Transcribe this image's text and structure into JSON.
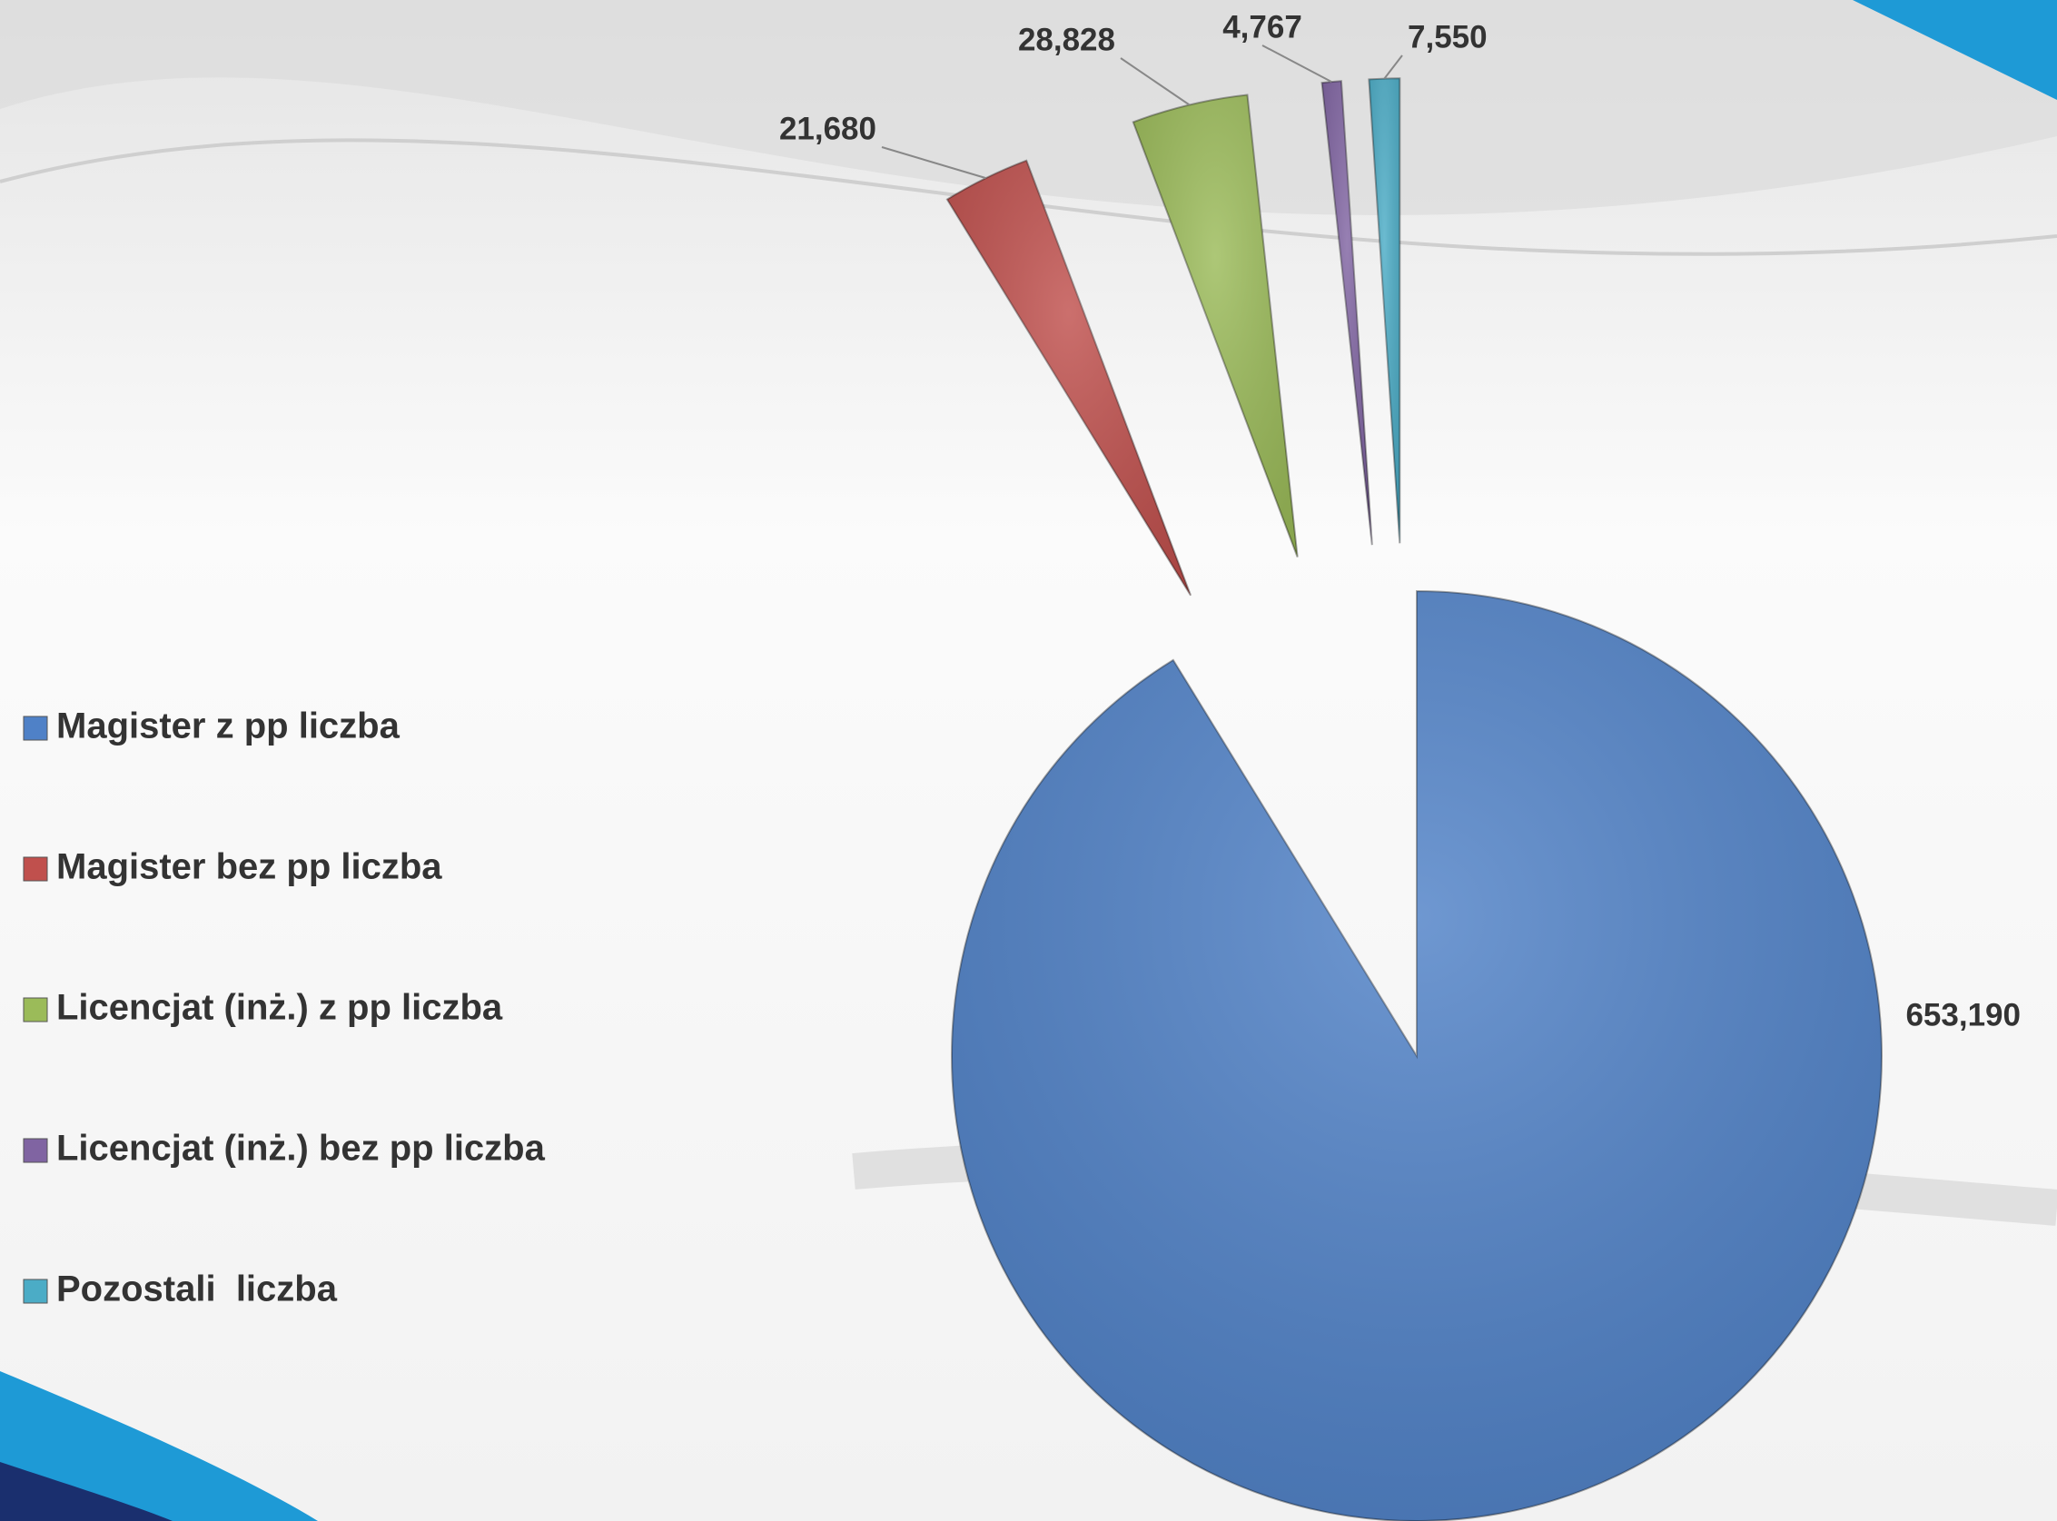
{
  "chart_data": {
    "type": "pie",
    "categories": [
      "Magister z pp liczba",
      "Magister bez pp liczba",
      "Licencjat (inż.) z pp liczba",
      "Licencjat (inż.) bez pp liczba",
      "Pozostali  liczba"
    ],
    "values": [
      653190,
      21680,
      28828,
      4767,
      7550
    ],
    "value_labels": [
      "653,190",
      "21,680",
      "28,828",
      "4,767",
      "7,550"
    ],
    "colors": [
      "#4f81c7",
      "#c0504d",
      "#9bbb59",
      "#8064a2",
      "#4bacc6"
    ],
    "legend": "left"
  }
}
